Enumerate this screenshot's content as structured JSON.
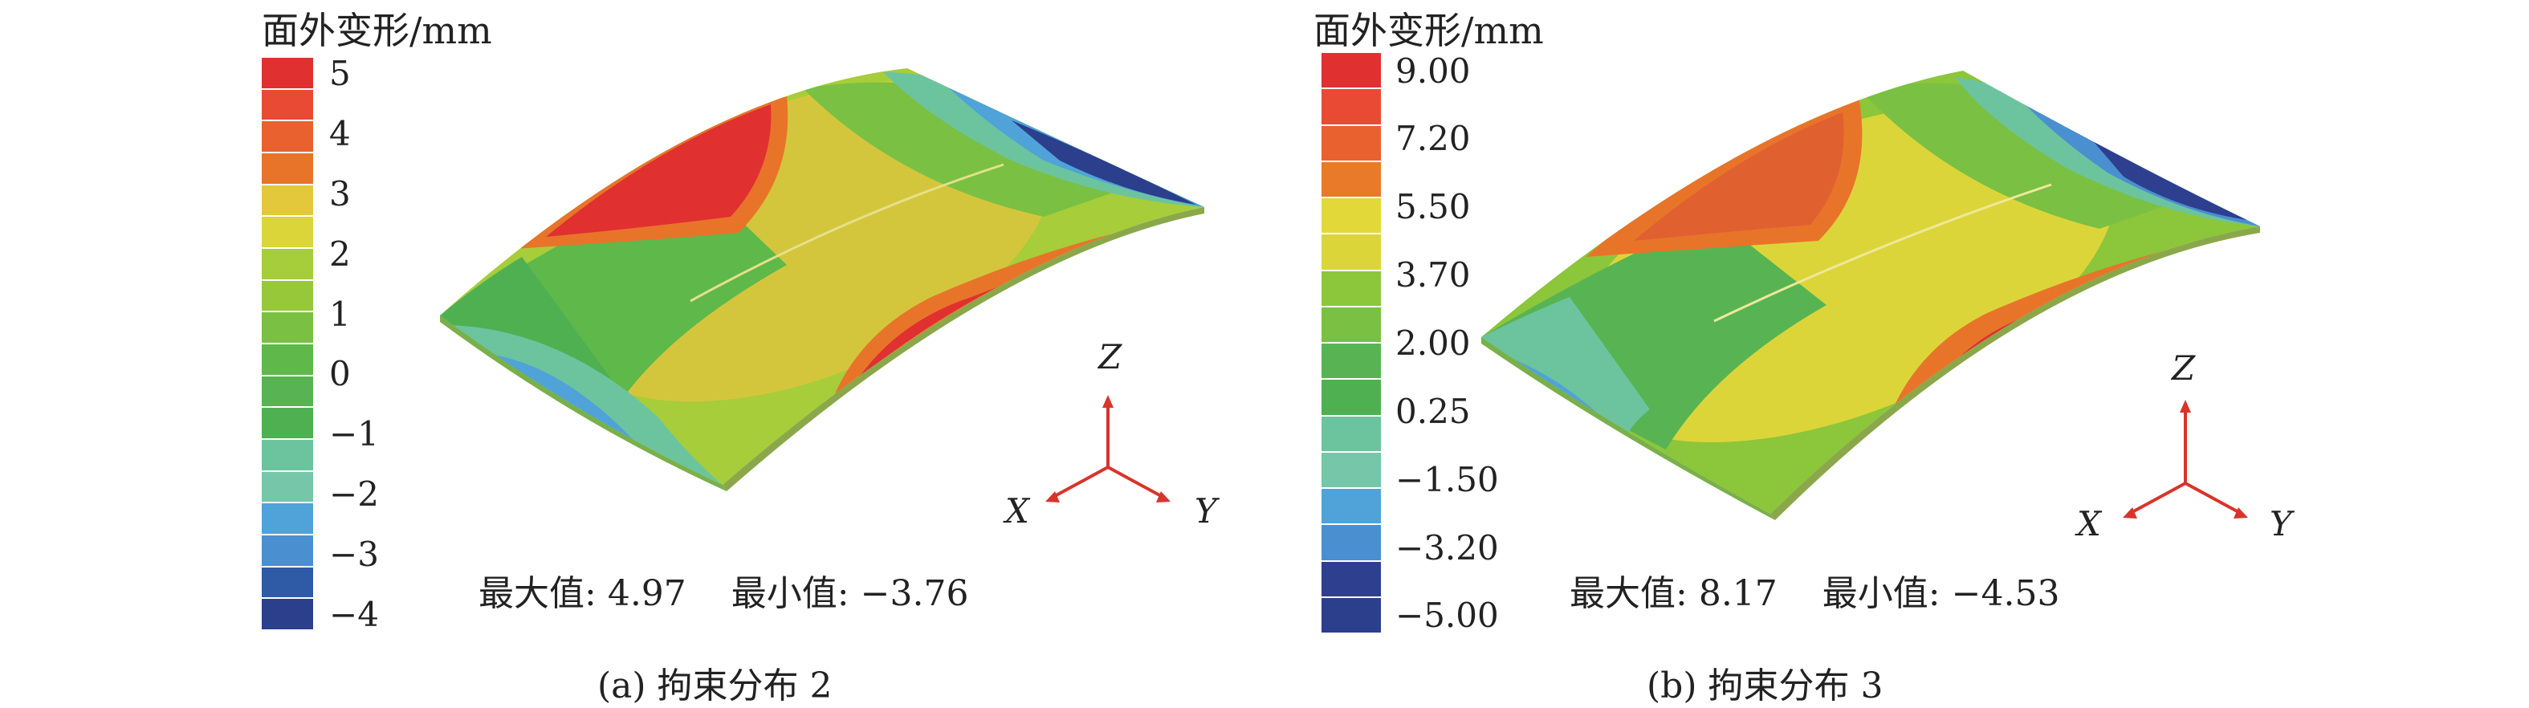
{
  "panels": [
    {
      "id": "a",
      "legend_title": "面外变形/mm",
      "legend_labels": [
        "5",
        "4",
        "3",
        "2",
        "1",
        "0",
        "−1",
        "−2",
        "−3",
        "−4"
      ],
      "legend_colors": [
        "#e03030",
        "#e84a34",
        "#e8612e",
        "#e8742a",
        "#e2c83a",
        "#dcd53a",
        "#a6cd3a",
        "#96c83a",
        "#7ac043",
        "#5fb84a",
        "#58b452",
        "#4fb052",
        "#6cc49e",
        "#76c6a9",
        "#4fa3d8",
        "#4a8fd0",
        "#2e5aa6",
        "#2b3f8c"
      ],
      "axes": {
        "z": "Z",
        "x": "X",
        "y": "Y"
      },
      "max_label": "最大值:",
      "max_value": "4.97",
      "min_label": "最小值:",
      "min_value": "−3.76",
      "caption": "(a) 拘束分布 2"
    },
    {
      "id": "b",
      "legend_title": "面外变形/mm",
      "legend_labels": [
        "9.00",
        "7.20",
        "5.50",
        "3.70",
        "2.00",
        "0.25",
        "−1.50",
        "−3.20",
        "−5.00"
      ],
      "legend_colors": [
        "#e03030",
        "#e84a34",
        "#e8612e",
        "#e87a2a",
        "#e2d83a",
        "#dcd53a",
        "#8cc63a",
        "#7ac043",
        "#58b452",
        "#4fb052",
        "#6cc49e",
        "#76c6a9",
        "#4fa3d8",
        "#4a8fd0",
        "#2e3f90",
        "#2b3f8c"
      ],
      "axes": {
        "z": "Z",
        "x": "X",
        "y": "Y"
      },
      "max_label": "最大值:",
      "max_value": "8.17",
      "min_label": "最小值:",
      "min_value": "−4.53",
      "caption": "(b) 拘束分布 3"
    }
  ]
}
